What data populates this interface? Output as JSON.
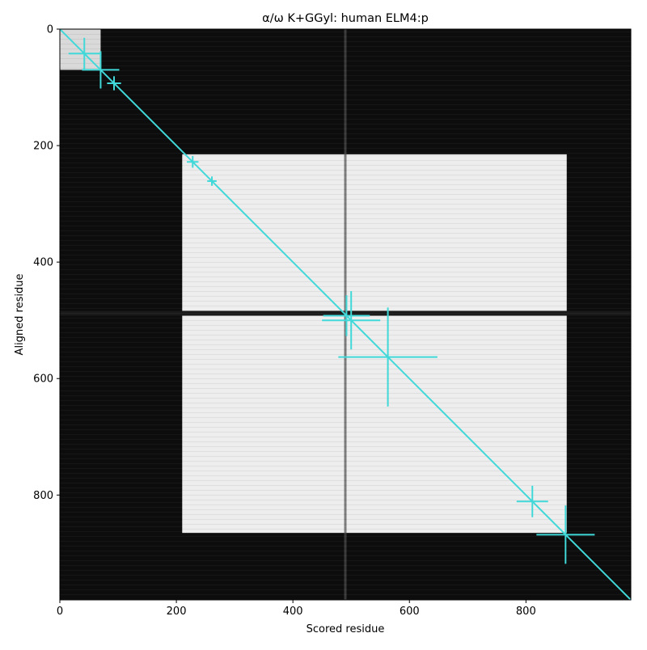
{
  "chart_data": {
    "type": "heatmap",
    "title": "α/ω K+GGyl: human ELM4:p",
    "xlabel": "Scored residue",
    "ylabel": "Aligned residue",
    "xlim": [
      0,
      980
    ],
    "ylim": [
      980,
      0
    ],
    "x_ticks": [
      0,
      200,
      400,
      600,
      800
    ],
    "y_ticks": [
      0,
      200,
      400,
      600,
      800
    ],
    "grid": false,
    "colormap": "grayscale",
    "heatmap_regions": [
      {
        "label": "bright block",
        "x_range": [
          210,
          870
        ],
        "y_range": [
          215,
          865
        ],
        "level": 0.93
      },
      {
        "label": "top-left bright corner",
        "x_range": [
          0,
          70
        ],
        "y_range": [
          0,
          70
        ],
        "level": 0.85
      }
    ],
    "dark_lines": [
      {
        "orientation": "horizontal",
        "at": 488,
        "level": 0.1
      },
      {
        "orientation": "vertical",
        "at": 490,
        "level": 0.3
      }
    ],
    "diagonal_line": {
      "from": [
        0,
        0
      ],
      "to": [
        980,
        980
      ],
      "color": "#40d8d8"
    },
    "crosses": [
      {
        "x": 42,
        "y": 42,
        "xerr": 27,
        "yerr": 27
      },
      {
        "x": 70,
        "y": 70,
        "xerr": 32,
        "yerr": 32
      },
      {
        "x": 93,
        "y": 93,
        "xerr": 12,
        "yerr": 12
      },
      {
        "x": 228,
        "y": 228,
        "xerr": 10,
        "yerr": 10
      },
      {
        "x": 261,
        "y": 261,
        "xerr": 8,
        "yerr": 8
      },
      {
        "x": 492,
        "y": 492,
        "xerr": 40,
        "yerr": 35
      },
      {
        "x": 500,
        "y": 500,
        "xerr": 50,
        "yerr": 50
      },
      {
        "x": 563,
        "y": 563,
        "xerr": 85,
        "yerr": 85
      },
      {
        "x": 811,
        "y": 811,
        "xerr": 27,
        "yerr": 27
      },
      {
        "x": 868,
        "y": 868,
        "xerr": 50,
        "yerr": 50
      }
    ],
    "cross_color": "#40d8d8"
  }
}
